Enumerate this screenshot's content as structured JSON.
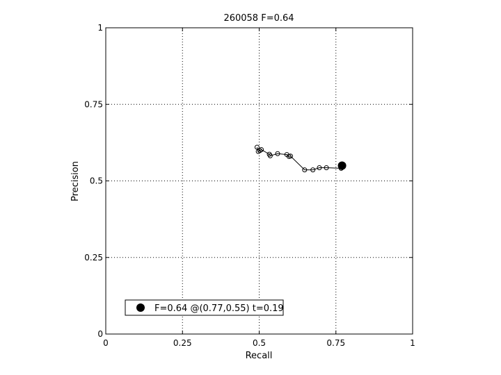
{
  "chart_data": {
    "type": "line",
    "title": "260058 F=0.64",
    "xlabel": "Recall",
    "ylabel": "Precision",
    "xlim": [
      0,
      1
    ],
    "ylim": [
      0,
      1
    ],
    "xticks": [
      "0",
      "0.25",
      "0.5",
      "0.75",
      "1"
    ],
    "yticks": [
      "0",
      "0.25",
      "0.5",
      "0.75",
      "1"
    ],
    "grid": true,
    "legend_position": "bottom-left",
    "legend_text": "F=0.64 @(0.77,0.55) t=0.19",
    "series": [
      {
        "x": [
          0.493,
          0.497,
          0.502,
          0.507,
          0.533,
          0.536,
          0.56,
          0.59,
          0.597,
          0.602,
          0.648,
          0.675,
          0.696,
          0.719,
          0.767
        ],
        "y": [
          0.61,
          0.596,
          0.599,
          0.602,
          0.587,
          0.582,
          0.589,
          0.586,
          0.58,
          0.581,
          0.536,
          0.536,
          0.543,
          0.543,
          0.541
        ]
      }
    ],
    "best_point": {
      "x": 0.77,
      "y": 0.55
    },
    "colors": {
      "line": "#000000",
      "grid": "#000000",
      "marker": "#000000"
    }
  }
}
